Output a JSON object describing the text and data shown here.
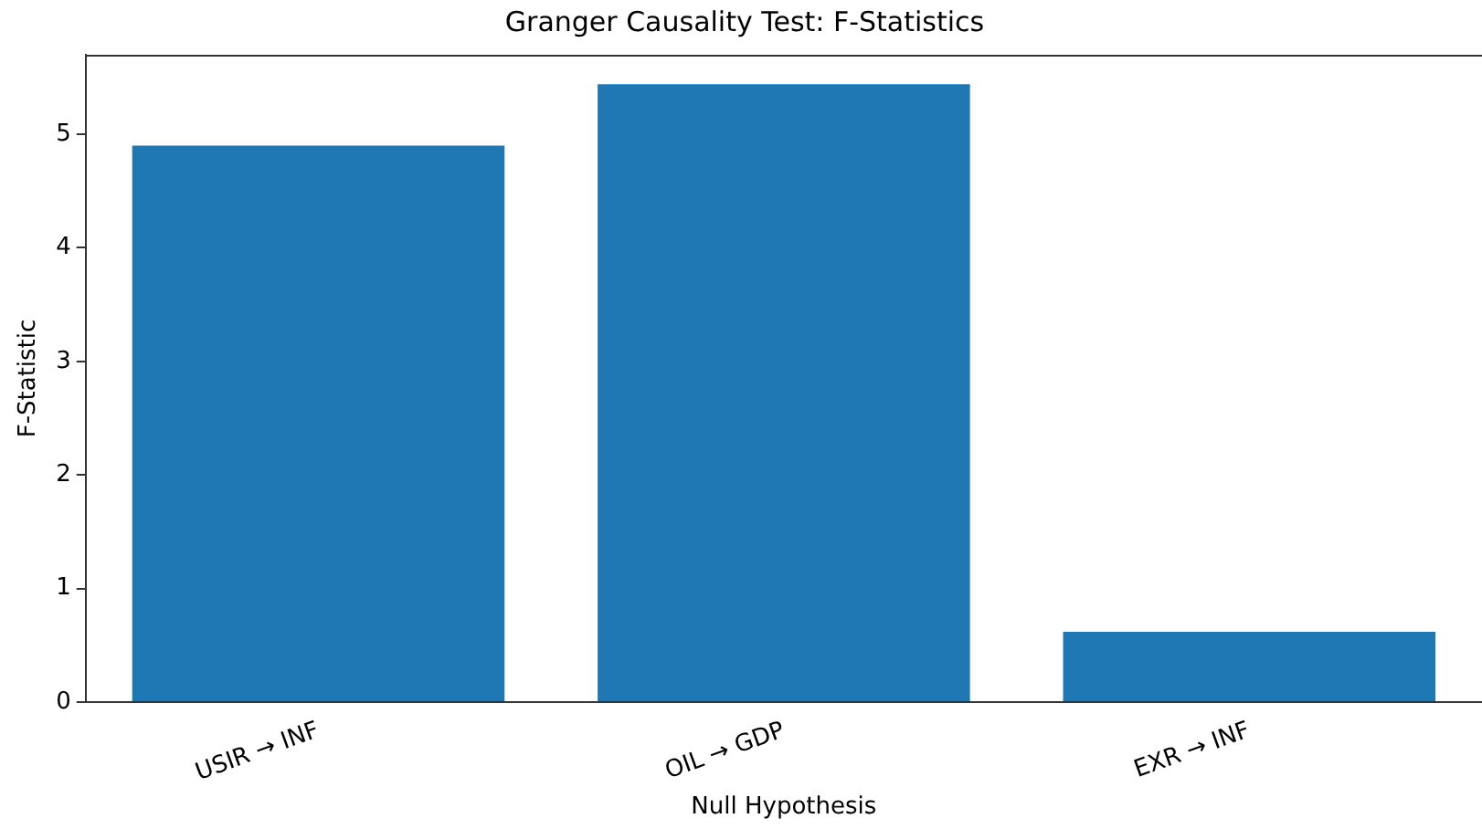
{
  "chart_data": {
    "type": "bar",
    "title": "Granger Causality Test: F-Statistics",
    "xlabel": "Null Hypothesis",
    "ylabel": "F-Statistic",
    "categories": [
      "USIR → INF",
      "OIL → GDP",
      "EXR → INF"
    ],
    "values": [
      4.9,
      5.44,
      0.62
    ],
    "color": "#1f77b4",
    "ylim": [
      0,
      5.7
    ],
    "yticks": [
      0,
      1,
      2,
      3,
      4,
      5
    ],
    "grid": false,
    "legend": false
  }
}
